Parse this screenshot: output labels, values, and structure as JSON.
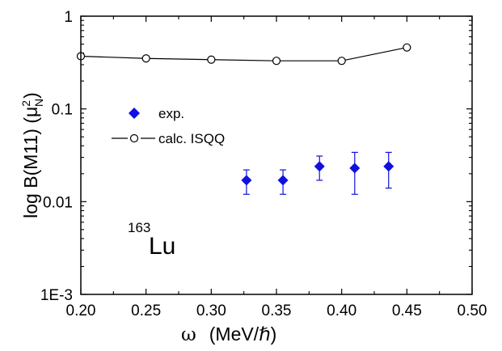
{
  "chart_data": {
    "type": "scatter",
    "xlabel": "ω  (MeV/ℏ)",
    "ylabel": "log B(M11) (μ_N^2)",
    "ylabel_parts": {
      "prefix": "log B(M11) (μ",
      "sub": "N",
      "sup": "2",
      "suffix": ")"
    },
    "xlabel_parts": {
      "omega": "ω",
      "unit": "(MeV/ℏ)"
    },
    "xlim": [
      0.2,
      0.5
    ],
    "ylim": [
      0.001,
      1
    ],
    "yscale": "log",
    "x_ticks": [
      "0.20",
      "0.25",
      "0.30",
      "0.35",
      "0.40",
      "0.45",
      "0.50"
    ],
    "x_tick_values": [
      0.2,
      0.25,
      0.3,
      0.35,
      0.4,
      0.45,
      0.5
    ],
    "y_ticks": [
      "1E-3",
      "0.01",
      "0.1",
      "1"
    ],
    "y_tick_values": [
      0.001,
      0.01,
      0.1,
      1
    ],
    "annotation": {
      "superscript": "163",
      "text": "Lu"
    },
    "legend_placement": "left-middle",
    "grid": false,
    "series": [
      {
        "name": "exp.",
        "marker": "diamond-filled",
        "color": "#1010e0",
        "x": [
          0.327,
          0.355,
          0.383,
          0.41,
          0.436
        ],
        "y": [
          0.017,
          0.017,
          0.024,
          0.023,
          0.024
        ],
        "err_low": [
          0.012,
          0.012,
          0.017,
          0.012,
          0.014
        ],
        "err_high": [
          0.022,
          0.022,
          0.031,
          0.034,
          0.034
        ]
      },
      {
        "name": "calc. ISQQ",
        "marker": "circle-open",
        "color": "#000000",
        "x": [
          0.2,
          0.25,
          0.3,
          0.35,
          0.4,
          0.45
        ],
        "y": [
          0.37,
          0.35,
          0.34,
          0.33,
          0.33,
          0.46
        ]
      }
    ]
  }
}
